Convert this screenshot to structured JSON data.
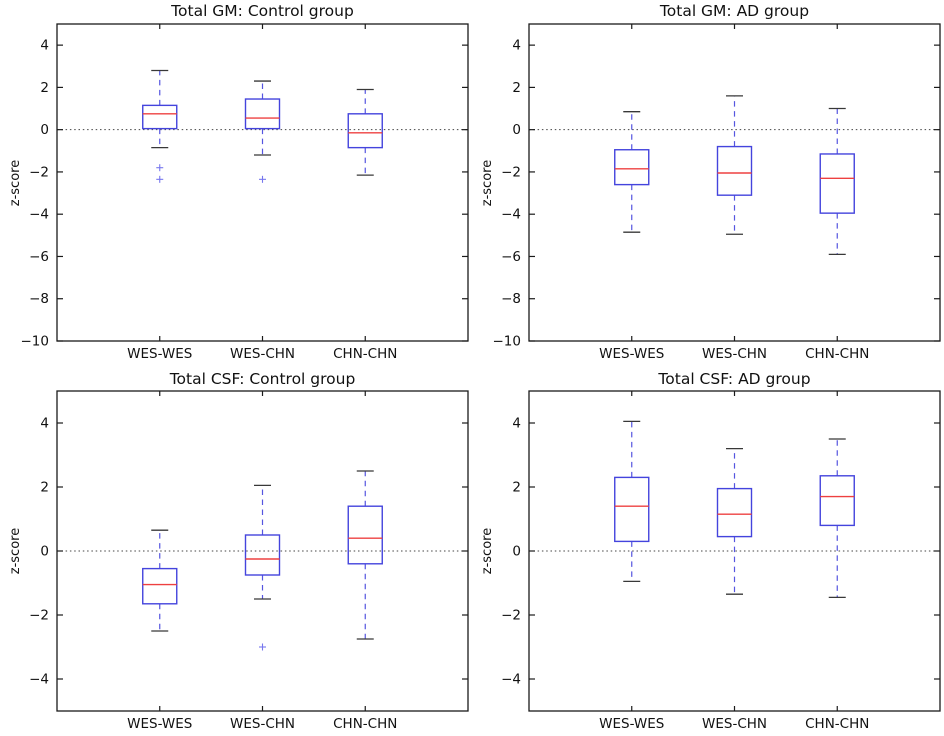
{
  "figure": {
    "background": "#ffffff"
  },
  "style": {
    "box_color": "#4444dd",
    "median_color": "#ee4040",
    "whisker_color": "#5555e0",
    "cap_color": "#383838",
    "outlier_color": "#7777ee",
    "axis_color": "#1a1a1a",
    "zero_line_color": "#444444",
    "text_color": "#111111"
  },
  "chart_data": [
    {
      "type": "boxplot",
      "title": "Total GM: Control group",
      "ylabel": "z-score",
      "categories": [
        "WES-WES",
        "WES-CHN",
        "CHN-CHN"
      ],
      "ylim": [
        -10,
        5
      ],
      "yticks": [
        4,
        2,
        0,
        -2,
        -4,
        -6,
        -8,
        -10
      ],
      "zero_line": 0,
      "grid": false,
      "boxes": [
        {
          "whislo": -0.85,
          "q1": 0.05,
          "med": 0.75,
          "q3": 1.15,
          "whishi": 2.8,
          "outliers": [
            -1.8,
            -2.35
          ]
        },
        {
          "whislo": -1.2,
          "q1": 0.05,
          "med": 0.55,
          "q3": 1.45,
          "whishi": 2.3,
          "outliers": [
            -2.35
          ]
        },
        {
          "whislo": -2.15,
          "q1": -0.85,
          "med": -0.15,
          "q3": 0.75,
          "whishi": 1.9,
          "outliers": []
        }
      ]
    },
    {
      "type": "boxplot",
      "title": "Total GM: AD group",
      "ylabel": "z-score",
      "categories": [
        "WES-WES",
        "WES-CHN",
        "CHN-CHN"
      ],
      "ylim": [
        -10,
        5
      ],
      "yticks": [
        4,
        2,
        0,
        -2,
        -4,
        -6,
        -8,
        -10
      ],
      "zero_line": 0,
      "grid": false,
      "boxes": [
        {
          "whislo": -4.85,
          "q1": -2.6,
          "med": -1.85,
          "q3": -0.95,
          "whishi": 0.85,
          "outliers": []
        },
        {
          "whislo": -4.95,
          "q1": -3.1,
          "med": -2.05,
          "q3": -0.8,
          "whishi": 1.6,
          "outliers": []
        },
        {
          "whislo": -5.9,
          "q1": -3.95,
          "med": -2.3,
          "q3": -1.15,
          "whishi": 1.0,
          "outliers": []
        }
      ]
    },
    {
      "type": "boxplot",
      "title": "Total CSF: Control group",
      "ylabel": "z-score",
      "categories": [
        "WES-WES",
        "WES-CHN",
        "CHN-CHN"
      ],
      "ylim": [
        -5,
        5
      ],
      "yticks": [
        4,
        2,
        0,
        -2,
        -4
      ],
      "zero_line": 0,
      "grid": false,
      "boxes": [
        {
          "whislo": -2.5,
          "q1": -1.65,
          "med": -1.05,
          "q3": -0.55,
          "whishi": 0.65,
          "outliers": []
        },
        {
          "whislo": -1.5,
          "q1": -0.75,
          "med": -0.25,
          "q3": 0.5,
          "whishi": 2.05,
          "outliers": [
            -3.0
          ]
        },
        {
          "whislo": -2.75,
          "q1": -0.4,
          "med": 0.4,
          "q3": 1.4,
          "whishi": 2.5,
          "outliers": []
        }
      ]
    },
    {
      "type": "boxplot",
      "title": "Total CSF: AD group",
      "ylabel": "z-score",
      "categories": [
        "WES-WES",
        "WES-CHN",
        "CHN-CHN"
      ],
      "ylim": [
        -5,
        5
      ],
      "yticks": [
        4,
        2,
        0,
        -2,
        -4
      ],
      "zero_line": 0,
      "grid": false,
      "boxes": [
        {
          "whislo": -0.95,
          "q1": 0.3,
          "med": 1.4,
          "q3": 2.3,
          "whishi": 4.05,
          "outliers": []
        },
        {
          "whislo": -1.35,
          "q1": 0.45,
          "med": 1.15,
          "q3": 1.95,
          "whishi": 3.2,
          "outliers": []
        },
        {
          "whislo": -1.45,
          "q1": 0.8,
          "med": 1.7,
          "q3": 2.35,
          "whishi": 3.5,
          "outliers": []
        }
      ]
    }
  ]
}
